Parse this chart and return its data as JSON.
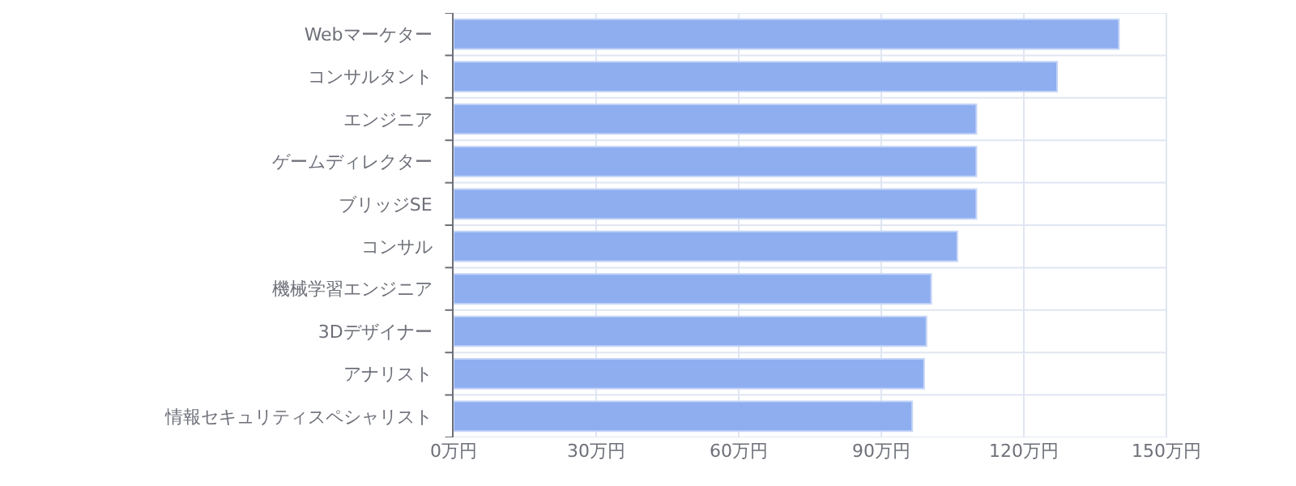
{
  "chart_data": {
    "type": "bar",
    "orientation": "horizontal",
    "categories": [
      "Webマーケター",
      "コンサルタント",
      "エンジニア",
      "ゲームディレクター",
      "ブリッジSE",
      "コンサル",
      "機械学習エンジニア",
      "3Dデザイナー",
      "アナリスト",
      "情報セキュリティスペシャリスト"
    ],
    "values": [
      140,
      127,
      110,
      110,
      110,
      106,
      100.5,
      99.5,
      99,
      96.5
    ],
    "color": "#8eaef0",
    "xlim": [
      0,
      150
    ],
    "xticks": [
      {
        "value": 0,
        "label": "0万円"
      },
      {
        "value": 30,
        "label": "30万円"
      },
      {
        "value": 60,
        "label": "60万円"
      },
      {
        "value": 90,
        "label": "90万円"
      },
      {
        "value": 120,
        "label": "120万円"
      },
      {
        "value": 150,
        "label": "150万円"
      }
    ],
    "grid": true
  }
}
